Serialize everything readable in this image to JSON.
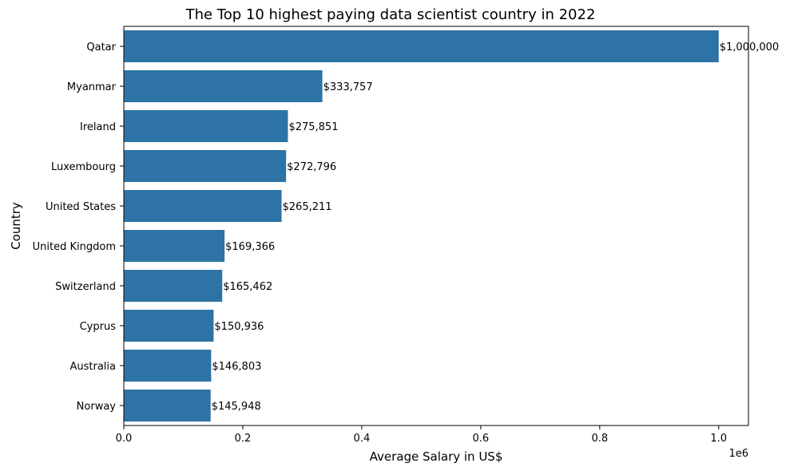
{
  "chart_data": {
    "type": "bar",
    "orientation": "horizontal",
    "title": "The Top 10 highest paying data scientist country in 2022",
    "xlabel": "Average Salary in US$",
    "ylabel": "Country",
    "x_offset_label": "1e6",
    "xlim": [
      0,
      1050000
    ],
    "x_ticks": [
      0,
      200000,
      400000,
      600000,
      800000,
      1000000
    ],
    "x_tick_labels": [
      "0.0",
      "0.2",
      "0.4",
      "0.6",
      "0.8",
      "1.0"
    ],
    "grid": false,
    "bar_color": "#2e73a5",
    "categories": [
      "Qatar",
      "Myanmar",
      "Ireland",
      "Luxembourg",
      "United States",
      "United Kingdom",
      "Switzerland",
      "Cyprus",
      "Australia",
      "Norway"
    ],
    "values": [
      1000000,
      333757,
      275851,
      272796,
      265211,
      169366,
      165462,
      150936,
      146803,
      145948
    ],
    "value_labels": [
      "$1,000,000",
      "$333,757",
      "$275,851",
      "$272,796",
      "$265,211",
      "$169,366",
      "$165,462",
      "$150,936",
      "$146,803",
      "$145,948"
    ]
  }
}
